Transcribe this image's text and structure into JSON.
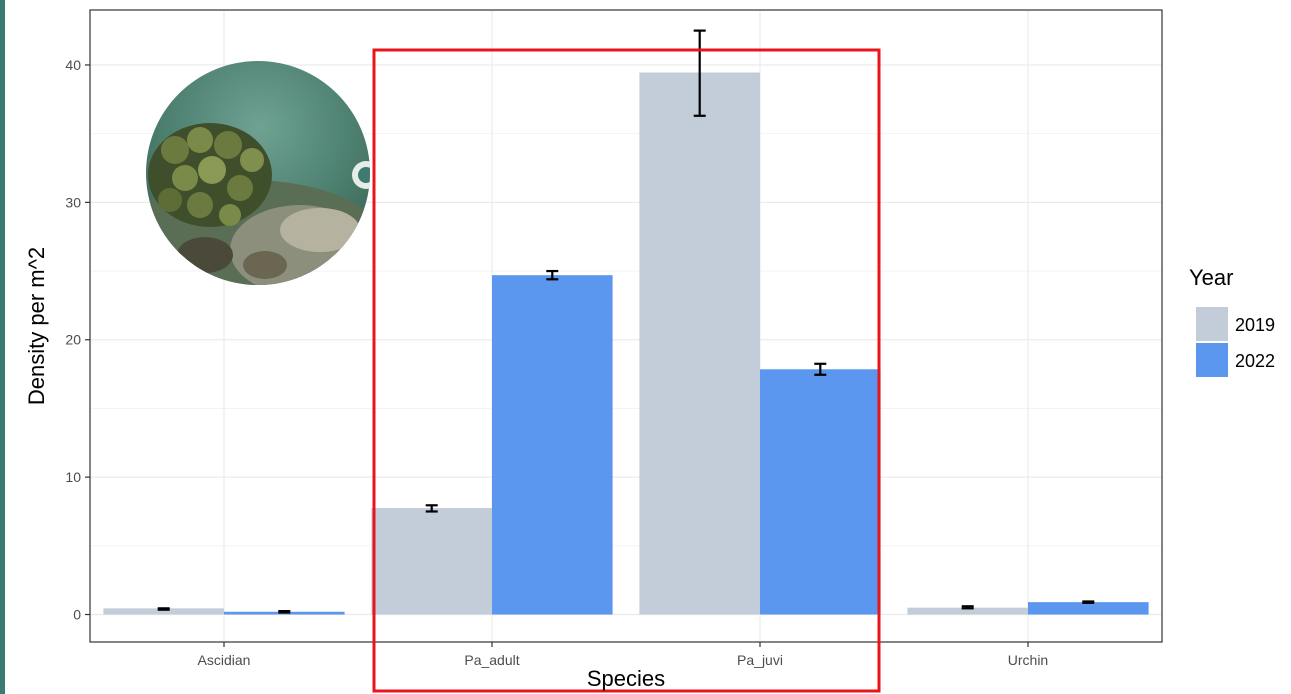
{
  "page": {
    "edge_color": "#3b7a70"
  },
  "chart_data": {
    "type": "bar",
    "title": "",
    "xlabel": "Species",
    "ylabel": "Density per m^2",
    "categories": [
      "Ascidian",
      "Pa_adult",
      "Pa_juvi",
      "Urchin"
    ],
    "ylim": [
      -2,
      44
    ],
    "yticks": [
      0,
      10,
      20,
      30,
      40
    ],
    "grid": true,
    "series": [
      {
        "name": "2019",
        "color": "#c2cdd9",
        "values": [
          0.45,
          7.75,
          39.45,
          0.5
        ],
        "error_low": [
          0.35,
          7.5,
          36.3,
          0.45
        ],
        "error_high": [
          0.45,
          7.95,
          42.5,
          0.6
        ]
      },
      {
        "name": "2022",
        "color": "#5b97ee",
        "values": [
          0.2,
          24.7,
          17.85,
          0.9
        ],
        "error_low": [
          0.15,
          24.4,
          17.45,
          0.85
        ],
        "error_high": [
          0.25,
          25.0,
          18.25,
          0.95
        ]
      }
    ],
    "legend": {
      "title": "Year",
      "position": "right"
    },
    "annotations": {
      "highlight_box": {
        "color": "#e8151b",
        "covers": [
          "Pa_adult",
          "Pa_juvi"
        ]
      },
      "inset_photo": {
        "subject": "coral-reef-photo"
      }
    }
  }
}
